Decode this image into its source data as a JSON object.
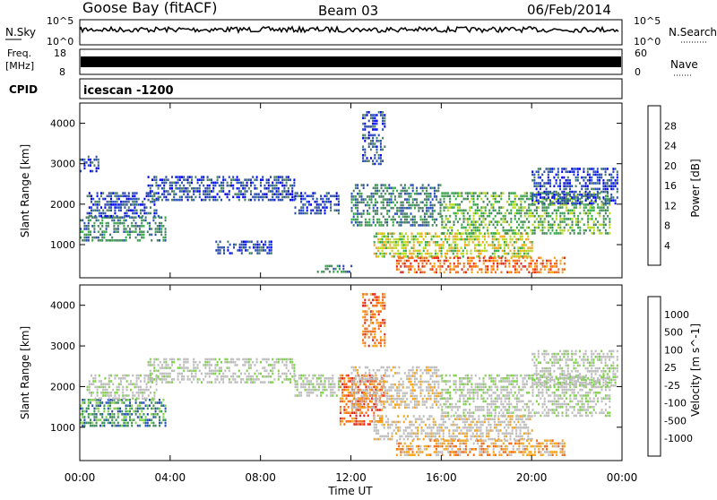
{
  "header": {
    "station": "Goose Bay (fitACF)",
    "beam": "Beam 03",
    "date": "06/Feb/2014"
  },
  "noise_panel": {
    "left_label": "N.Sky",
    "right_label": "N.Search",
    "left_ticks": [
      "10^5",
      "10^0"
    ],
    "right_ticks": [
      "10^5",
      "10^0"
    ]
  },
  "freq_panel": {
    "left_label_1": "Freq.",
    "left_label_2": "[MHz]",
    "right_label": "Nave",
    "left_ticks": [
      "18",
      "8"
    ],
    "right_ticks": [
      "60",
      "0"
    ]
  },
  "cpid_panel": {
    "label": "CPID",
    "value": "icescan -1200"
  },
  "colors": {
    "power": [
      "#0000ff",
      "#2a4db3",
      "#4a7f63",
      "#39a84a",
      "#b8d820",
      "#f8a31c",
      "#f36b17",
      "#e8221a"
    ],
    "velocity": [
      "#e81e1e",
      "#f26a1a",
      "#f7a31a",
      "#bdbdbd",
      "#bdbdbd",
      "#7fd04a",
      "#3a8f5a",
      "#2a4db3",
      "#2222aa"
    ]
  },
  "chart_data": [
    {
      "type": "heatmap",
      "name": "power-panel",
      "xlabel": "Time UT",
      "ylabel": "Slant Range [km]",
      "xlim": [
        0,
        24
      ],
      "ylim": [
        180,
        4500
      ],
      "x_ticks": [
        "00:00",
        "04:00",
        "08:00",
        "12:00",
        "16:00",
        "20:00",
        "00:00"
      ],
      "y_ticks": [
        "1000",
        "2000",
        "3000",
        "4000"
      ],
      "colorbar": {
        "label": "Power [dB]",
        "ticks": [
          "4",
          "8",
          "12",
          "16",
          "20",
          "24",
          "28"
        ],
        "range": [
          0,
          32
        ]
      },
      "regions": [
        {
          "t": [
            0.0,
            3.8
          ],
          "r": [
            1100,
            1700
          ],
          "value": 10
        },
        {
          "t": [
            0.3,
            3.5
          ],
          "r": [
            1700,
            2300
          ],
          "value": 6
        },
        {
          "t": [
            3.0,
            9.5
          ],
          "r": [
            2100,
            2700
          ],
          "value": 5
        },
        {
          "t": [
            6.0,
            8.5
          ],
          "r": [
            800,
            1100
          ],
          "value": 4
        },
        {
          "t": [
            9.5,
            11.5
          ],
          "r": [
            1800,
            2300
          ],
          "value": 6
        },
        {
          "t": [
            10.5,
            12.0
          ],
          "r": [
            300,
            500
          ],
          "value": 8
        },
        {
          "t": [
            12.0,
            16.0
          ],
          "r": [
            1500,
            2500
          ],
          "value": 10
        },
        {
          "t": [
            13.0,
            20.0
          ],
          "r": [
            700,
            1300
          ],
          "value": 18
        },
        {
          "t": [
            14.0,
            21.5
          ],
          "r": [
            300,
            700
          ],
          "value": 26
        },
        {
          "t": [
            16.0,
            23.5
          ],
          "r": [
            1300,
            2300
          ],
          "value": 14
        },
        {
          "t": [
            20.0,
            23.8
          ],
          "r": [
            2000,
            2900
          ],
          "value": 5
        },
        {
          "t": [
            0.0,
            0.8
          ],
          "r": [
            2800,
            3200
          ],
          "value": 4
        },
        {
          "t": [
            12.5,
            13.5
          ],
          "r": [
            3000,
            4300
          ],
          "value": 5
        }
      ]
    },
    {
      "type": "heatmap",
      "name": "velocity-panel",
      "xlabel": "Time UT",
      "ylabel": "Slant Range [km]",
      "xlim": [
        0,
        24
      ],
      "ylim": [
        180,
        4500
      ],
      "x_ticks": [
        "00:00",
        "04:00",
        "08:00",
        "12:00",
        "16:00",
        "20:00",
        "00:00"
      ],
      "y_ticks": [
        "1000",
        "2000",
        "3000",
        "4000"
      ],
      "colorbar": {
        "label": "Velocity [m s^-1]",
        "ticks": [
          "-1000",
          "-500",
          "-100",
          "-25",
          "25",
          "100",
          "500",
          "1000"
        ]
      },
      "regions": [
        {
          "t": [
            0.0,
            3.8
          ],
          "r": [
            1000,
            1700
          ],
          "value": 6
        },
        {
          "t": [
            0.3,
            3.5
          ],
          "r": [
            1700,
            2300
          ],
          "value": 4
        },
        {
          "t": [
            3.0,
            9.5
          ],
          "r": [
            2100,
            2700
          ],
          "value": 4
        },
        {
          "t": [
            9.5,
            11.5
          ],
          "r": [
            1800,
            2300
          ],
          "value": 4
        },
        {
          "t": [
            11.5,
            13.5
          ],
          "r": [
            1100,
            2300
          ],
          "value": 1
        },
        {
          "t": [
            12.0,
            16.0
          ],
          "r": [
            1500,
            2500
          ],
          "value": 3
        },
        {
          "t": [
            13.0,
            20.0
          ],
          "r": [
            700,
            1300
          ],
          "value": 3
        },
        {
          "t": [
            14.0,
            21.5
          ],
          "r": [
            300,
            700
          ],
          "value": 2
        },
        {
          "t": [
            16.0,
            23.5
          ],
          "r": [
            1300,
            2300
          ],
          "value": 4
        },
        {
          "t": [
            20.0,
            23.8
          ],
          "r": [
            2000,
            2900
          ],
          "value": 4
        },
        {
          "t": [
            12.5,
            13.5
          ],
          "r": [
            3000,
            4300
          ],
          "value": 1
        }
      ]
    }
  ]
}
